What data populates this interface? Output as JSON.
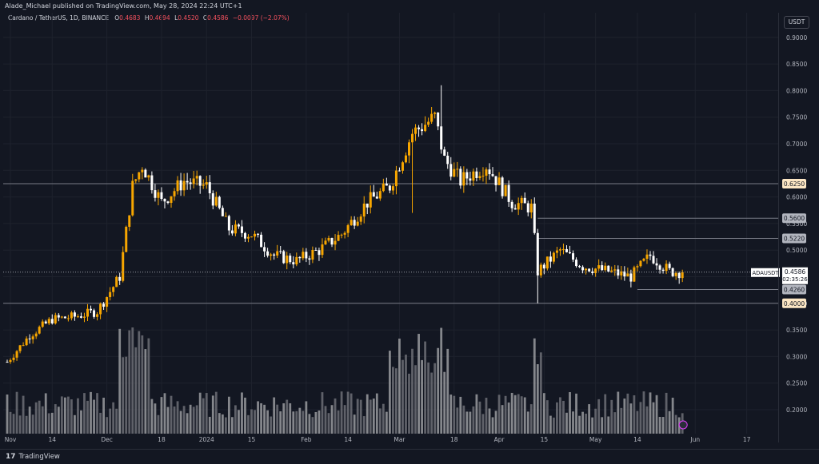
{
  "header": {
    "published": "Alade_Michael published on TradingView.com, May 28, 2024 22:24 UTC+1"
  },
  "legend": {
    "symbol": "Cardano / TetherUS, 1D, BINANCE",
    "o_label": "O",
    "o": "0.4683",
    "h_label": "H",
    "h": "0.4694",
    "l_label": "L",
    "l": "0.4520",
    "c_label": "C",
    "c": "0.4586",
    "change": "−0.0097 (−2.07%)"
  },
  "currency_button": "USDT",
  "footer": {
    "logo_mark": "17",
    "logo_text": "TradingView"
  },
  "colors": {
    "up": "#f7a600",
    "down": "#ffffff",
    "vol_up": "#6d6f76",
    "vol_down": "#9a9b9f",
    "background": "#131722",
    "grid": "#1e222d",
    "level_line": "#787b86"
  },
  "chart_data": {
    "type": "candlestick",
    "title": "Cardano / TetherUS, 1D, BINANCE",
    "ylim": [
      0.15,
      0.93
    ],
    "y_ticks": [
      "0.9000",
      "0.8500",
      "0.8000",
      "0.7500",
      "0.7000",
      "0.6500",
      "0.6000",
      "0.5500",
      "0.5000",
      "0.4500",
      "0.4000",
      "0.3500",
      "0.3000",
      "0.2500",
      "0.2000"
    ],
    "x_ticks": [
      "Nov",
      "14",
      "Dec",
      "18",
      "2024",
      "15",
      "Feb",
      "14",
      "Mar",
      "18",
      "Apr",
      "15",
      "May",
      "14",
      "Jun",
      "17"
    ],
    "x_tick_dates": [
      "2023-11-01",
      "2023-11-14",
      "2023-12-01",
      "2023-12-18",
      "2024-01-01",
      "2024-01-15",
      "2024-02-01",
      "2024-02-14",
      "2024-03-01",
      "2024-03-18",
      "2024-04-01",
      "2024-04-15",
      "2024-05-01",
      "2024-05-14",
      "2024-06-01",
      "2024-06-17"
    ],
    "start_date": "2023-10-31",
    "end_date": "2024-05-28",
    "levels": [
      {
        "price": 0.625,
        "label": "0.6250",
        "style": "orange"
      },
      {
        "price": 0.56,
        "label": "0.5600",
        "style": "white"
      },
      {
        "price": 0.522,
        "label": "0.5220",
        "style": "white"
      },
      {
        "price": 0.426,
        "label": "0.4260",
        "style": "white"
      },
      {
        "price": 0.4,
        "label": "0.4000",
        "style": "orange"
      }
    ],
    "last_price": {
      "symbol": "ADAUSDT",
      "price": "0.4586",
      "countdown": "02:35:26",
      "value": 0.4586
    },
    "ohlc_anchors": [
      [
        "2023-10-31",
        0.29
      ],
      [
        "2023-11-07",
        0.34
      ],
      [
        "2023-11-14",
        0.37
      ],
      [
        "2023-11-21",
        0.375
      ],
      [
        "2023-11-28",
        0.385
      ],
      [
        "2023-12-05",
        0.45
      ],
      [
        "2023-12-09",
        0.62
      ],
      [
        "2023-12-12",
        0.66
      ],
      [
        "2023-12-18",
        0.59
      ],
      [
        "2023-12-25",
        0.63
      ],
      [
        "2024-01-01",
        0.62
      ],
      [
        "2024-01-08",
        0.54
      ],
      [
        "2024-01-15",
        0.53
      ],
      [
        "2024-01-22",
        0.49
      ],
      [
        "2024-01-29",
        0.48
      ],
      [
        "2024-02-05",
        0.5
      ],
      [
        "2024-02-12",
        0.53
      ],
      [
        "2024-02-20",
        0.59
      ],
      [
        "2024-02-27",
        0.62
      ],
      [
        "2024-03-05",
        0.72
      ],
      [
        "2024-03-12",
        0.75
      ],
      [
        "2024-03-15",
        0.67
      ],
      [
        "2024-03-20",
        0.63
      ],
      [
        "2024-03-28",
        0.66
      ],
      [
        "2024-04-05",
        0.59
      ],
      [
        "2024-04-11",
        0.58
      ],
      [
        "2024-04-13",
        0.46
      ],
      [
        "2024-04-20",
        0.5
      ],
      [
        "2024-04-27",
        0.47
      ],
      [
        "2024-05-05",
        0.46
      ],
      [
        "2024-05-12",
        0.45
      ],
      [
        "2024-05-18",
        0.49
      ],
      [
        "2024-05-24",
        0.46
      ],
      [
        "2024-05-28",
        0.4586
      ]
    ]
  }
}
